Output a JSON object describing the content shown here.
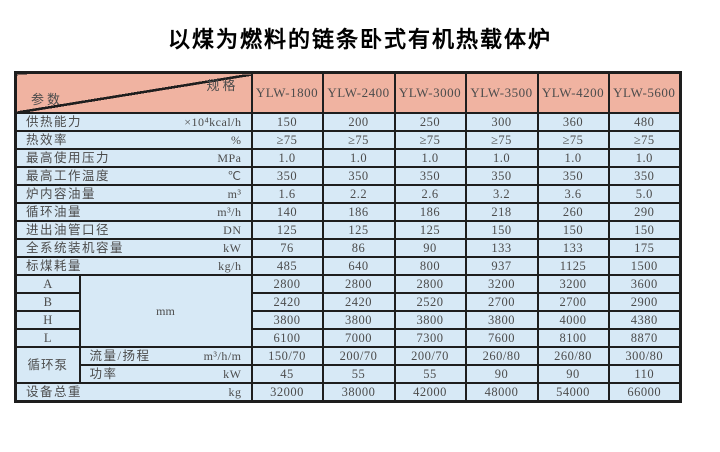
{
  "title": "以煤为燃料的链条卧式有机热载体炉",
  "colors": {
    "header_bg": "#f0b3a1",
    "cell_bg": "#d7e9f6",
    "border": "#1e1e1e",
    "text": "#4c4c4c"
  },
  "table": {
    "corner": {
      "top_right": "规格",
      "bottom_left": "参数"
    },
    "models": [
      "YLW-1800",
      "YLW-2400",
      "YLW-3000",
      "YLW-3500",
      "YLW-4200",
      "YLW-5600"
    ],
    "rows": [
      {
        "label": "供热能力",
        "unit": "×10⁴kcal/h",
        "values": [
          "150",
          "200",
          "250",
          "300",
          "360",
          "480"
        ]
      },
      {
        "label": "热效率",
        "unit": "%",
        "values": [
          "≥75",
          "≥75",
          "≥75",
          "≥75",
          "≥75",
          "≥75"
        ]
      },
      {
        "label": "最高使用压力",
        "unit": "MPa",
        "values": [
          "1.0",
          "1.0",
          "1.0",
          "1.0",
          "1.0",
          "1.0"
        ]
      },
      {
        "label": "最高工作温度",
        "unit": "℃",
        "values": [
          "350",
          "350",
          "350",
          "350",
          "350",
          "350"
        ]
      },
      {
        "label": "炉内容油量",
        "unit": "m³",
        "values": [
          "1.6",
          "2.2",
          "2.6",
          "3.2",
          "3.6",
          "5.0"
        ]
      },
      {
        "label": "循环油量",
        "unit": "m³/h",
        "values": [
          "140",
          "186",
          "186",
          "218",
          "260",
          "290"
        ]
      },
      {
        "label": "进出油管口径",
        "unit": "DN",
        "values": [
          "125",
          "125",
          "125",
          "150",
          "150",
          "150"
        ]
      },
      {
        "label": "全系统装机容量",
        "unit": "kW",
        "values": [
          "76",
          "86",
          "90",
          "133",
          "133",
          "175"
        ]
      },
      {
        "label": "标煤耗量",
        "unit": "kg/h",
        "values": [
          "485",
          "640",
          "800",
          "937",
          "1125",
          "1500"
        ]
      }
    ],
    "dimensions": {
      "unit": "mm",
      "rows": [
        {
          "label": "A",
          "values": [
            "2800",
            "2800",
            "2800",
            "3200",
            "3200",
            "3600"
          ]
        },
        {
          "label": "B",
          "values": [
            "2420",
            "2420",
            "2520",
            "2700",
            "2700",
            "2900"
          ]
        },
        {
          "label": "H",
          "values": [
            "3800",
            "3800",
            "3800",
            "3800",
            "4000",
            "4380"
          ]
        },
        {
          "label": "L",
          "values": [
            "6100",
            "7000",
            "7300",
            "7600",
            "8100",
            "8870"
          ]
        }
      ]
    },
    "pump": {
      "label": "循环泵",
      "rows": [
        {
          "label": "流量/扬程",
          "unit": "m³/h/m",
          "values": [
            "150/70",
            "200/70",
            "200/70",
            "260/80",
            "260/80",
            "300/80"
          ]
        },
        {
          "label": "功率",
          "unit": "kW",
          "values": [
            "45",
            "55",
            "55",
            "90",
            "90",
            "110"
          ]
        }
      ]
    },
    "total": {
      "label": "设备总重",
      "unit": "kg",
      "values": [
        "32000",
        "38000",
        "42000",
        "48000",
        "54000",
        "66000"
      ]
    }
  }
}
